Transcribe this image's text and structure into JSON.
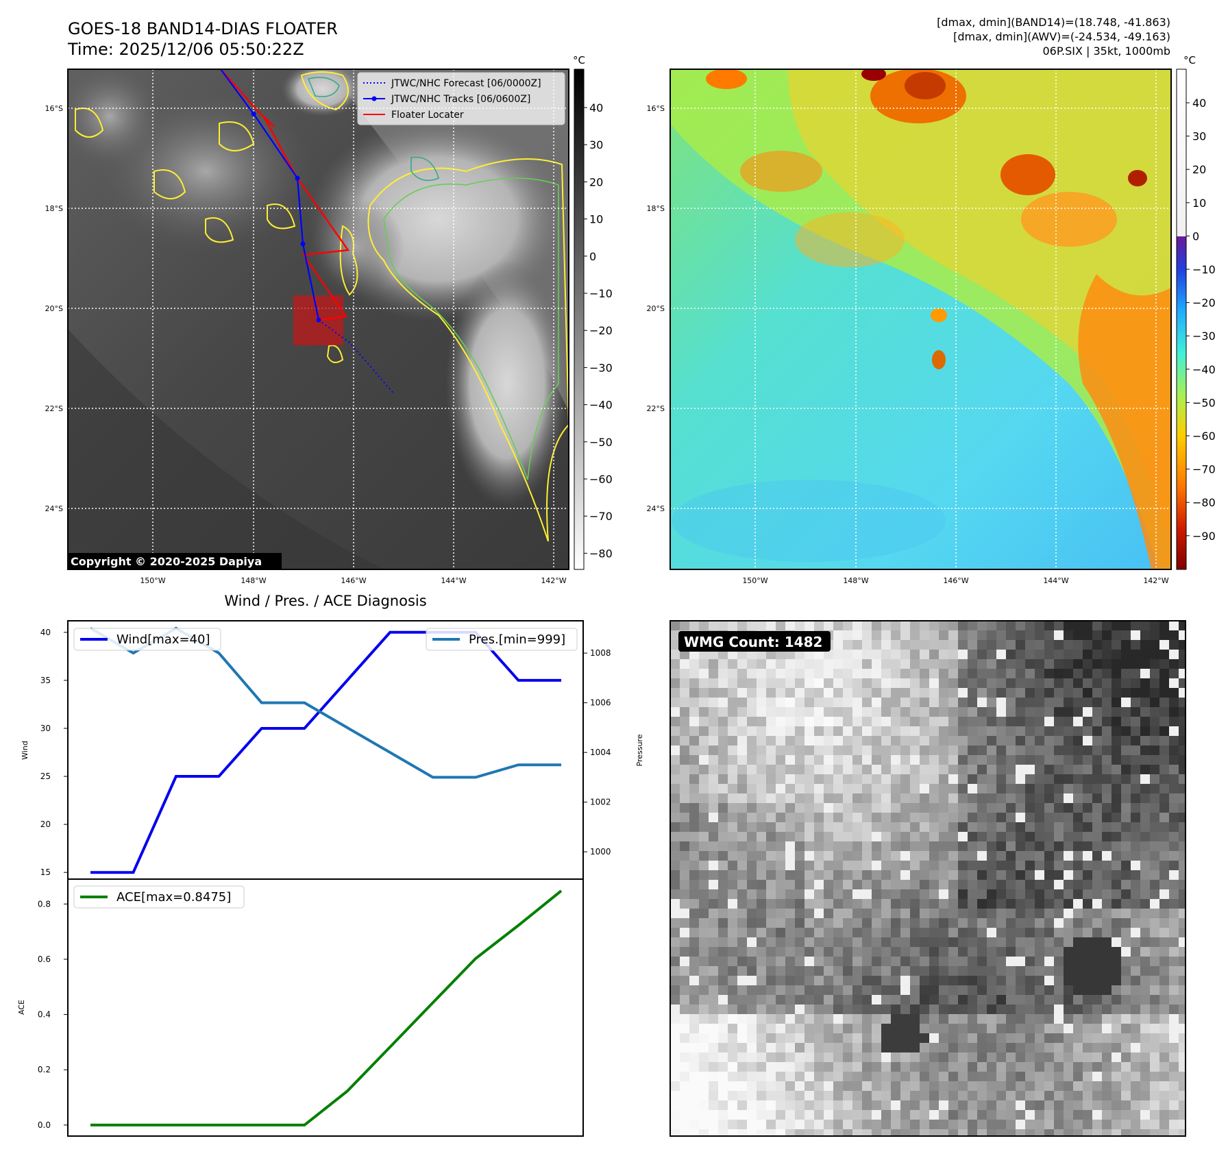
{
  "header": {
    "title_line1": "GOES-18 BAND14-DIAS FLOATER",
    "title_line2": "Time: 2025/12/06 05:50:22Z",
    "info_line1": "[dmax, dmin](BAND14)=(18.748, -41.863)",
    "info_line2": "[dmax, dmin](AWV)=(-24.534, -49.163)",
    "info_line3": "06P.SIX | 35kt, 1000mb"
  },
  "ir_panel": {
    "lat_labels": [
      "16°S",
      "18°S",
      "20°S",
      "22°S",
      "24°S"
    ],
    "lon_labels": [
      "150°W",
      "148°W",
      "146°W",
      "144°W",
      "142°W"
    ],
    "legend": [
      "JTWC/NHC Forecast [06/0000Z]",
      "JTWC/NHC Tracks [06/0600Z]",
      "Floater Locater"
    ],
    "copyright": "Copyright © 2020-2025 Dapiya",
    "colorbar_unit": "°C",
    "colorbar_ticks": [
      "40",
      "30",
      "20",
      "10",
      "0",
      "−10",
      "−20",
      "−30",
      "−40",
      "−50",
      "−60",
      "−70",
      "−80"
    ],
    "colors": {
      "forecast": "#0000ff",
      "track": "#0000ff",
      "locater": "#ff0000",
      "contour_yellow": "#ffee33",
      "contour_green": "#66cc55"
    }
  },
  "wv_panel": {
    "lat_labels": [
      "16°S",
      "18°S",
      "20°S",
      "22°S",
      "24°S"
    ],
    "lon_labels": [
      "150°W",
      "148°W",
      "146°W",
      "144°W",
      "142°W"
    ],
    "colorbar_unit": "°C",
    "colorbar_ticks": [
      "40",
      "30",
      "20",
      "10",
      "0",
      "−10",
      "−20",
      "−30",
      "−40",
      "−50",
      "−60",
      "−70",
      "−80",
      "−90"
    ]
  },
  "wmg_panel": {
    "badge": "WMG Count: 1482"
  },
  "chart_data": [
    {
      "type": "line",
      "title": "Wind / Pres. / ACE Diagnosis",
      "xlabel": "",
      "ylabel": "Wind",
      "ylabel_right": "Pressure",
      "x": [
        0,
        1,
        2,
        3,
        4,
        5,
        6,
        7,
        8,
        9,
        10,
        11
      ],
      "ylim": [
        14.3,
        41.2
      ],
      "yticks": [
        15,
        20,
        25,
        30,
        35,
        40
      ],
      "ylim_right": [
        998.9,
        1009.3
      ],
      "yticks_right": [
        1000,
        1002,
        1004,
        1006,
        1008
      ],
      "series": [
        {
          "name": "Wind[max=40]",
          "axis": "left",
          "color": "#0000ee",
          "values": [
            15,
            15,
            25,
            25,
            30,
            30,
            35,
            40,
            40,
            40,
            35,
            35
          ]
        },
        {
          "name": "Pres.[min=999]",
          "axis": "right",
          "color": "#1f77b4",
          "values": [
            1009,
            1008,
            1009,
            1008,
            1006,
            1006,
            1005,
            1004,
            1003,
            1003,
            1003.5,
            1003.5
          ]
        }
      ],
      "legend": "top-left / top-right"
    },
    {
      "type": "line",
      "title": "",
      "xlabel": "",
      "ylabel": "ACE",
      "x": [
        0,
        1,
        2,
        3,
        4,
        5,
        6,
        7,
        8,
        9,
        10,
        11
      ],
      "ylim": [
        -0.04,
        0.89
      ],
      "yticks": [
        "0.0",
        "0.2",
        "0.4",
        "0.6",
        "0.8"
      ],
      "series": [
        {
          "name": "ACE[max=0.8475]",
          "color": "#008000",
          "values": [
            0,
            0,
            0,
            0,
            0,
            0,
            0.1225,
            0.2825,
            0.4425,
            0.6025,
            0.7225,
            0.8475
          ]
        }
      ],
      "legend": "top-left"
    }
  ]
}
